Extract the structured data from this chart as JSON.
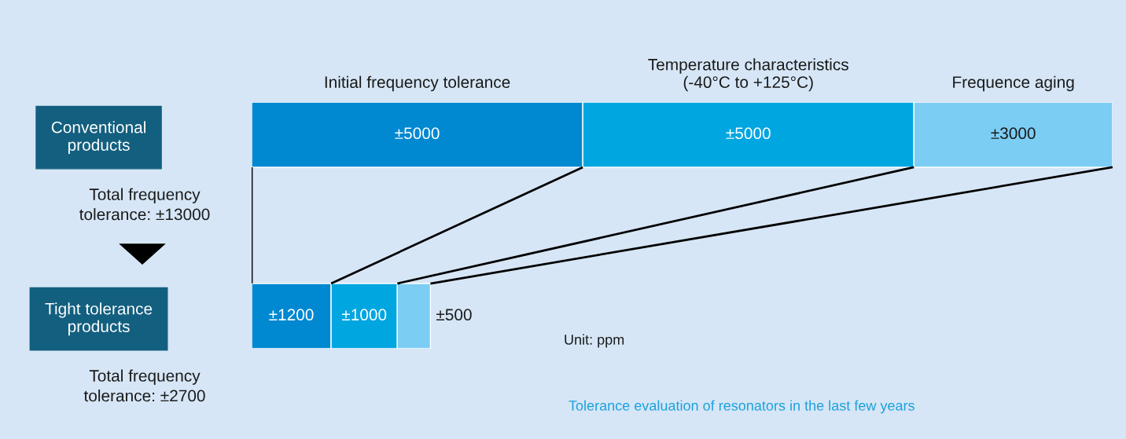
{
  "chart_data": {
    "type": "bar",
    "orientation": "horizontal",
    "stacked": true,
    "categories": [
      "Conventional products",
      "Tight tolerance products"
    ],
    "series": [
      {
        "name": "Initial frequency tolerance",
        "color": "#0088d1",
        "values": [
          5000,
          1200
        ],
        "value_labels": [
          "±5000",
          "±1200"
        ]
      },
      {
        "name": "Temperature characteristics\n(-40°C to +125°C)",
        "color": "#00a6e0",
        "values": [
          5000,
          1000
        ],
        "value_labels": [
          "±5000",
          "±1000"
        ]
      },
      {
        "name": "Frequence aging",
        "color": "#7ccdf4",
        "values": [
          3000,
          500
        ],
        "value_labels": [
          "±3000",
          "±500"
        ]
      }
    ],
    "annotations": [
      "Total frequency tolerance: ±13000",
      "Total frequency tolerance: ±2700",
      "Unit: ppm",
      "Tolerance evaluation of resonators in the last few years"
    ],
    "tick_labels": "y",
    "legend": false,
    "grid": false
  }
}
